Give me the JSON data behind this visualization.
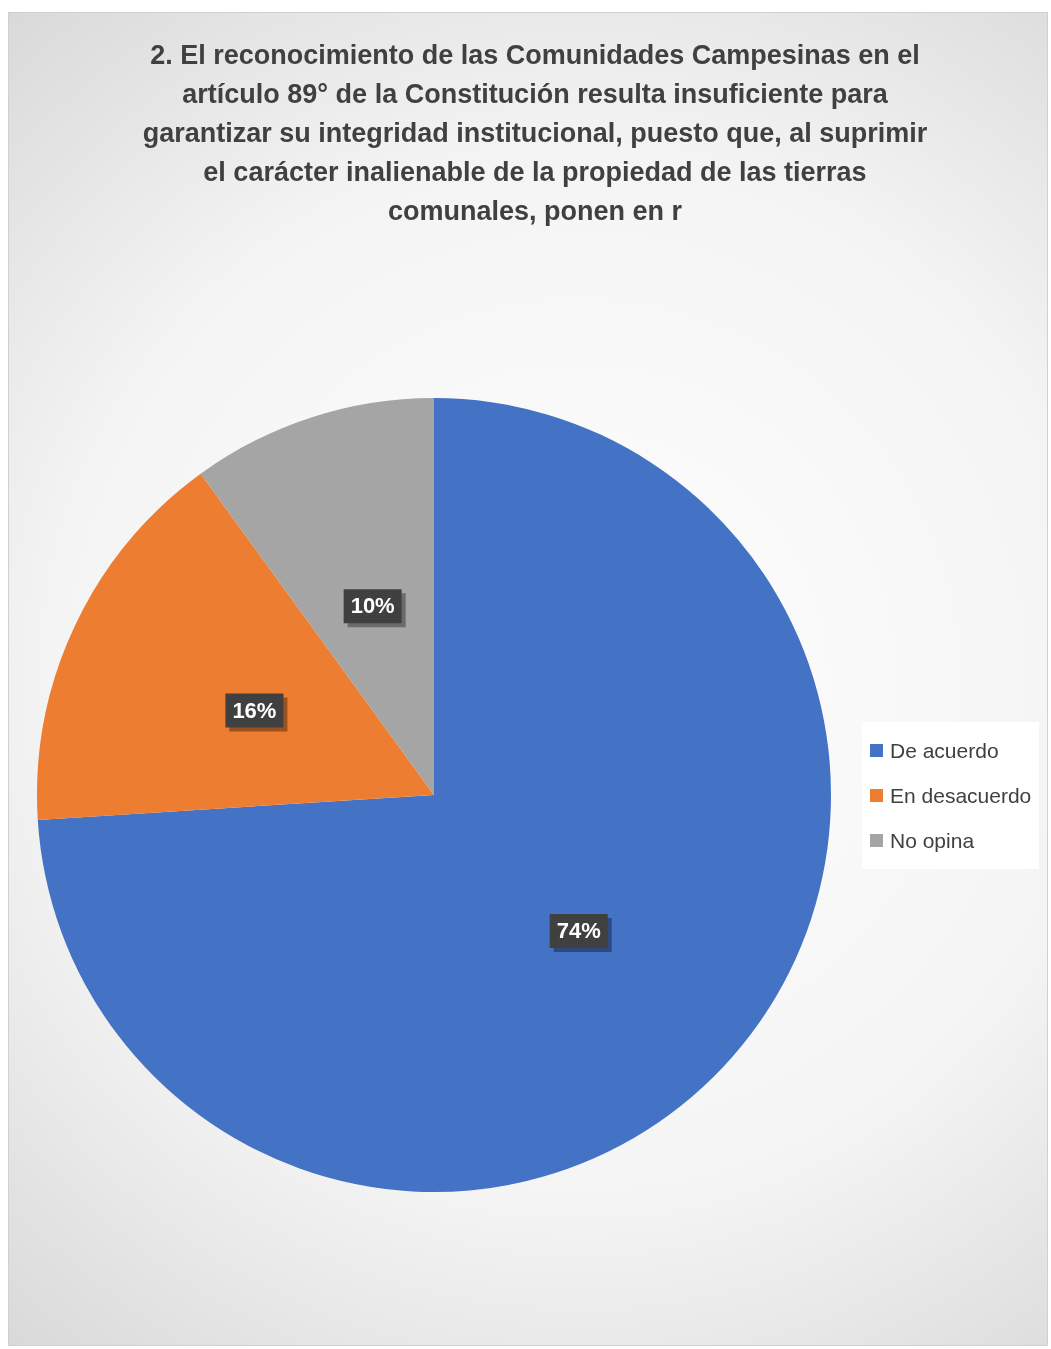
{
  "chart_data": {
    "type": "pie",
    "title": "2. El reconocimiento de las Comunidades Campesinas en el artículo 89° de la Constitución resulta insuficiente para garantizar su integridad institucional, puesto que, al suprimir el carácter inalienable de la propiedad de las tierras comunales, ponen en r",
    "categories": [
      "De acuerdo",
      "En desacuerdo",
      "No opina"
    ],
    "values": [
      74,
      16,
      10
    ],
    "colors": [
      "#4472c4",
      "#ed7d31",
      "#a5a5a5"
    ],
    "value_labels": [
      "74%",
      "16%",
      "10%"
    ],
    "legend": "right"
  }
}
